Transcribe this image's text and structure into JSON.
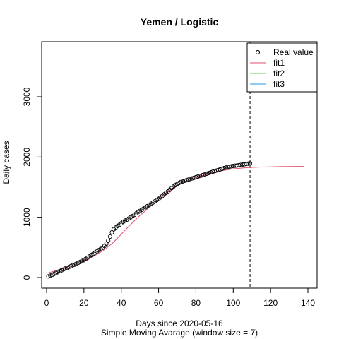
{
  "chart_data": {
    "type": "scatter",
    "title": "Yemen / Logistic",
    "xlabel": "Days since 2020-05-16",
    "sublabel": "Simple Moving Avarage (window size = 7)",
    "ylabel": "Daily cases",
    "xlim": [
      0,
      140
    ],
    "ylim": [
      0,
      3900
    ],
    "xticks": [
      0,
      20,
      40,
      60,
      80,
      100,
      120,
      140
    ],
    "yticks": [
      0,
      1000,
      2000,
      3000
    ],
    "vline_x": 109,
    "legend_position": "top-right",
    "series": [
      {
        "name": "Real value",
        "kind": "points",
        "color": "#000000",
        "x": [
          1,
          2,
          3,
          4,
          5,
          6,
          7,
          8,
          9,
          10,
          11,
          12,
          13,
          14,
          15,
          16,
          17,
          18,
          19,
          20,
          21,
          22,
          23,
          24,
          25,
          26,
          27,
          28,
          29,
          30,
          31,
          32,
          33,
          34,
          35,
          36,
          37,
          38,
          39,
          40,
          41,
          42,
          43,
          44,
          45,
          46,
          47,
          48,
          49,
          50,
          51,
          52,
          53,
          54,
          55,
          56,
          57,
          58,
          59,
          60,
          61,
          62,
          63,
          64,
          65,
          66,
          67,
          68,
          69,
          70,
          71,
          72,
          73,
          74,
          75,
          76,
          77,
          78,
          79,
          80,
          81,
          82,
          83,
          84,
          85,
          86,
          87,
          88,
          89,
          90,
          91,
          92,
          93,
          94,
          95,
          96,
          97,
          98,
          99,
          100,
          101,
          102,
          103,
          104,
          105,
          106,
          107,
          108,
          109
        ],
        "y": [
          20,
          30,
          45,
          60,
          75,
          90,
          105,
          120,
          135,
          150,
          160,
          175,
          190,
          205,
          215,
          230,
          245,
          260,
          275,
          290,
          310,
          330,
          350,
          375,
          395,
          415,
          435,
          455,
          475,
          495,
          525,
          560,
          610,
          680,
          750,
          800,
          830,
          855,
          875,
          900,
          925,
          945,
          960,
          980,
          1000,
          1020,
          1040,
          1065,
          1085,
          1105,
          1125,
          1145,
          1165,
          1185,
          1205,
          1225,
          1245,
          1265,
          1285,
          1305,
          1330,
          1355,
          1380,
          1405,
          1430,
          1455,
          1485,
          1510,
          1535,
          1555,
          1570,
          1585,
          1595,
          1605,
          1615,
          1625,
          1635,
          1645,
          1655,
          1665,
          1675,
          1685,
          1695,
          1705,
          1715,
          1725,
          1735,
          1745,
          1755,
          1765,
          1775,
          1785,
          1795,
          1805,
          1815,
          1825,
          1835,
          1840,
          1845,
          1850,
          1855,
          1860,
          1865,
          1870,
          1875,
          1880,
          1885,
          1890,
          1895
        ]
      },
      {
        "name": "fit1",
        "kind": "line",
        "color": "#DF536B",
        "x": [
          1,
          5,
          10,
          15,
          20,
          25,
          30,
          35,
          40,
          45,
          50,
          55,
          60,
          65,
          70,
          75,
          80,
          85,
          90,
          95,
          100,
          105,
          110,
          115,
          120,
          125,
          130,
          135,
          138
        ],
        "y": [
          80,
          115,
          165,
          215,
          275,
          350,
          440,
          560,
          720,
          880,
          1030,
          1165,
          1295,
          1420,
          1530,
          1610,
          1665,
          1710,
          1750,
          1780,
          1803,
          1818,
          1828,
          1834,
          1838,
          1841,
          1843,
          1844,
          1845
        ]
      },
      {
        "name": "fit2",
        "kind": "line",
        "color": "#61D04F",
        "x": [],
        "y": []
      },
      {
        "name": "fit3",
        "kind": "line",
        "color": "#2297E6",
        "x": [],
        "y": []
      }
    ]
  }
}
